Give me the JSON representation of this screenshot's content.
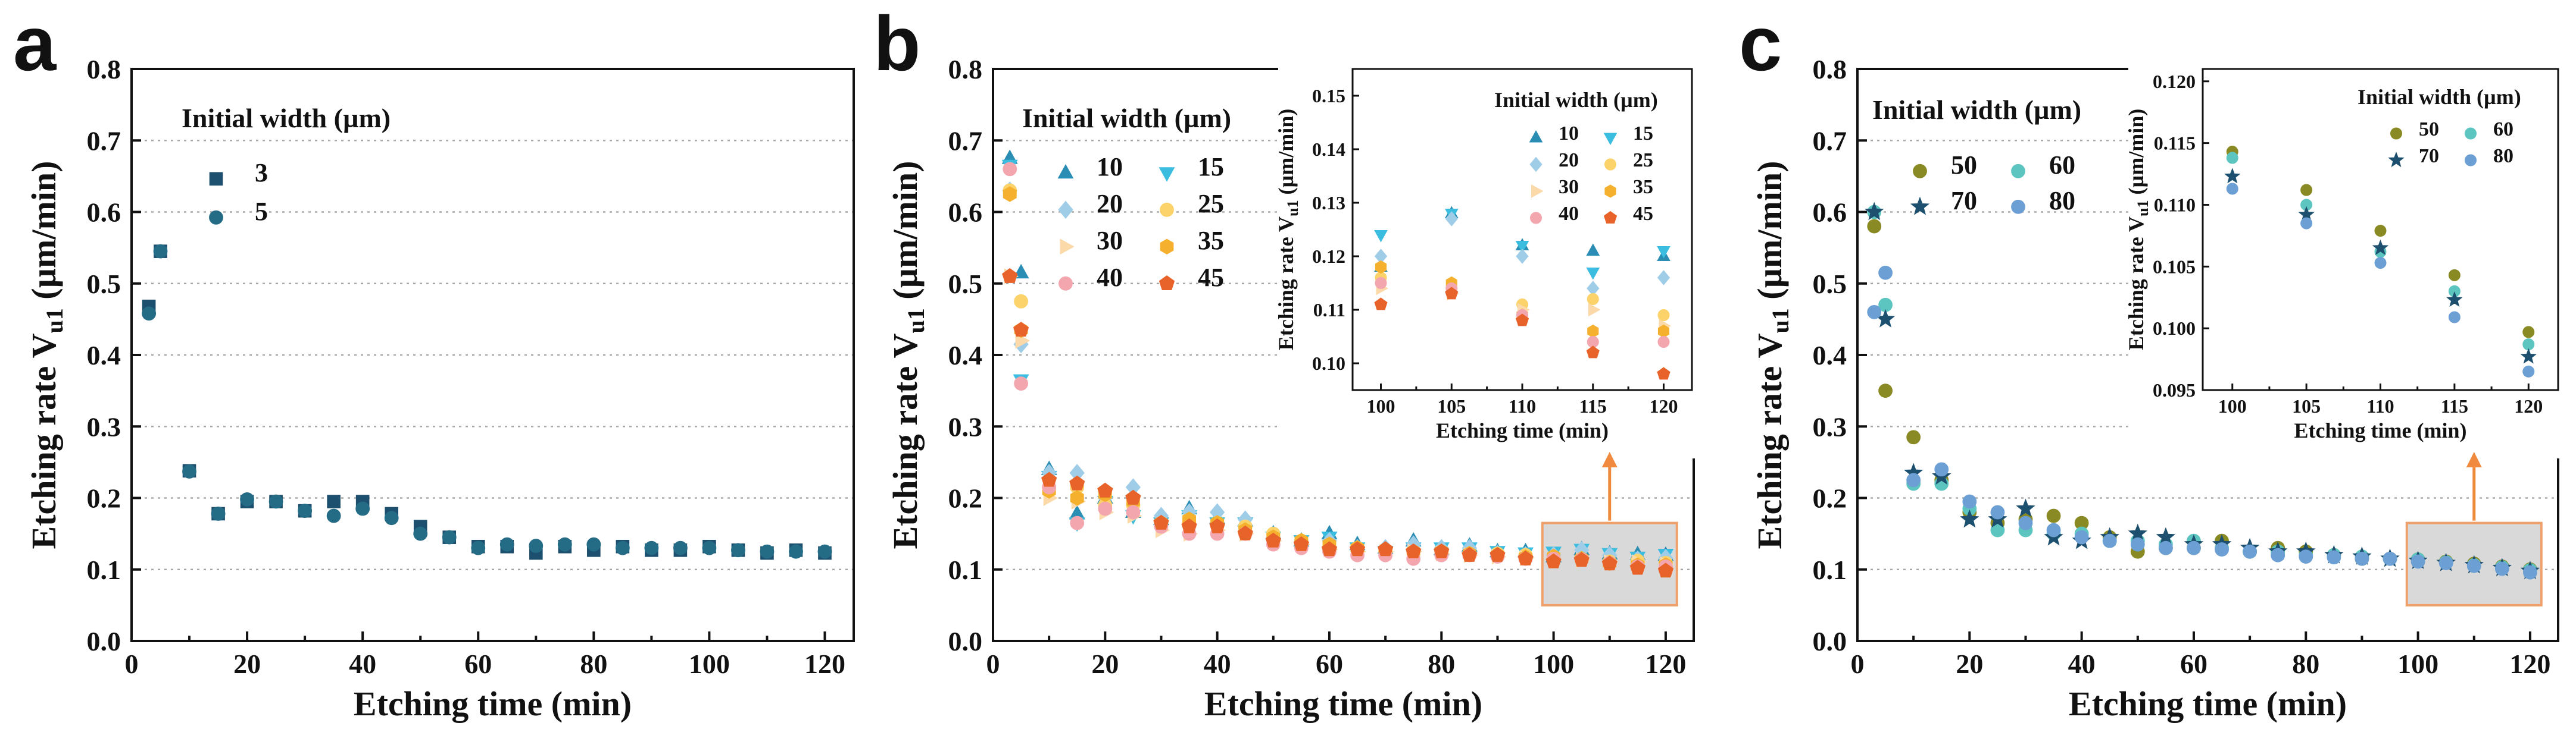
{
  "panels_text": {
    "a": {
      "letter": "a",
      "legend_title": "Initial width (µm)",
      "x_label": "Etching time (min)",
      "y_label": "Etching rate V",
      "y_label_sub": "u1",
      "y_label_unit": " (µm/min)"
    },
    "b": {
      "letter": "b",
      "legend_title": "Initial width (µm)",
      "x_label": "Etching time (min)",
      "y_label": "Etching rate V",
      "y_label_sub": "u1",
      "y_label_unit": " (µm/min)"
    },
    "c": {
      "letter": "c",
      "legend_title": "Initial width (µm)",
      "x_label": "Etching time (min)",
      "y_label": "Etching rate V",
      "y_label_sub": "u1",
      "y_label_unit": " (µm/min)"
    }
  },
  "colors": {
    "w3": "#1d4f6e",
    "w5": "#246b85",
    "w10": "#2a8db3",
    "w15": "#3bbde0",
    "w20": "#9fcde8",
    "w25": "#fcd36a",
    "w30": "#fcd9a8",
    "w35": "#f5b02e",
    "w40": "#f4a6ae",
    "w45": "#e8632a",
    "w50": "#8a8a24",
    "w60": "#5cc5c0",
    "w70": "#1d4f6e",
    "w80": "#6c9fd4",
    "highlight_fill": "#d9d9d9",
    "highlight_edge": "#f0a06a",
    "arrow": "#f08a3e"
  },
  "chart_data": [
    {
      "panel": "a",
      "type": "scatter",
      "title": "",
      "xlabel": "Etching time (min)",
      "ylabel": "Etching rate Vu1 (µm/min)",
      "xlim": [
        0,
        125
      ],
      "ylim": [
        0,
        0.8
      ],
      "xticks": [
        0,
        20,
        40,
        60,
        80,
        100,
        120
      ],
      "yticks": [
        0.0,
        0.1,
        0.2,
        0.3,
        0.4,
        0.5,
        0.6,
        0.7,
        0.8
      ],
      "x": [
        3,
        5,
        10,
        15,
        20,
        25,
        30,
        35,
        40,
        45,
        50,
        55,
        60,
        65,
        70,
        75,
        80,
        85,
        90,
        95,
        100,
        105,
        110,
        115,
        120
      ],
      "series": [
        {
          "name": "3",
          "marker": "square",
          "color_key": "w3",
          "values": [
            0.468,
            0.545,
            0.238,
            0.178,
            0.195,
            0.195,
            0.182,
            0.195,
            0.195,
            0.178,
            0.16,
            0.145,
            0.132,
            0.132,
            0.123,
            0.132,
            0.127,
            0.132,
            0.127,
            0.127,
            0.132,
            0.127,
            0.123,
            0.127,
            0.123
          ]
        },
        {
          "name": "5",
          "marker": "circle",
          "color_key": "w5",
          "values": [
            0.458,
            0.545,
            0.237,
            0.178,
            0.198,
            0.195,
            0.182,
            0.175,
            0.185,
            0.172,
            0.15,
            0.145,
            0.13,
            0.135,
            0.133,
            0.135,
            0.135,
            0.13,
            0.13,
            0.13,
            0.13,
            0.127,
            0.125,
            0.125,
            0.125
          ]
        }
      ]
    },
    {
      "panel": "b",
      "type": "scatter",
      "title": "",
      "xlabel": "Etching time (min)",
      "ylabel": "Etching rate Vu1 (µm/min)",
      "xlim": [
        0,
        125
      ],
      "ylim": [
        0,
        0.8
      ],
      "xticks": [
        0,
        20,
        40,
        60,
        80,
        100,
        120
      ],
      "yticks": [
        0.0,
        0.1,
        0.2,
        0.3,
        0.4,
        0.5,
        0.6,
        0.7,
        0.8
      ],
      "x": [
        3,
        5,
        10,
        15,
        20,
        25,
        30,
        35,
        40,
        45,
        50,
        55,
        60,
        65,
        70,
        75,
        80,
        85,
        90,
        95,
        100,
        105,
        110,
        115,
        120
      ],
      "highlight": {
        "x_range": [
          98,
          122
        ],
        "y_range": [
          0.05,
          0.165
        ]
      },
      "series": [
        {
          "name": "10",
          "marker": "triangle-up",
          "color_key": "w10",
          "values": [
            0.675,
            0.515,
            0.24,
            0.178,
            0.2,
            0.18,
            0.17,
            0.185,
            0.172,
            0.168,
            0.15,
            0.14,
            0.15,
            0.135,
            0.13,
            0.14,
            0.128,
            0.133,
            0.125,
            0.125,
            0.118,
            0.128,
            0.122,
            0.121,
            0.12
          ]
        },
        {
          "name": "15",
          "marker": "triangle-down",
          "color_key": "w15",
          "values": [
            0.665,
            0.365,
            0.23,
            0.165,
            0.195,
            0.175,
            0.165,
            0.175,
            0.165,
            0.165,
            0.145,
            0.14,
            0.145,
            0.13,
            0.125,
            0.13,
            0.13,
            0.13,
            0.125,
            0.123,
            0.124,
            0.128,
            0.122,
            0.117,
            0.121
          ]
        },
        {
          "name": "20",
          "marker": "diamond",
          "color_key": "w20",
          "values": [
            0.63,
            0.415,
            0.235,
            0.235,
            0.2,
            0.215,
            0.175,
            0.18,
            0.18,
            0.17,
            0.145,
            0.135,
            0.14,
            0.13,
            0.13,
            0.135,
            0.13,
            0.13,
            0.122,
            0.12,
            0.12,
            0.127,
            0.12,
            0.114,
            0.116
          ]
        },
        {
          "name": "25",
          "marker": "circle",
          "color_key": "w25",
          "values": [
            0.63,
            0.475,
            0.215,
            0.215,
            0.19,
            0.19,
            0.165,
            0.165,
            0.165,
            0.16,
            0.15,
            0.14,
            0.13,
            0.13,
            0.125,
            0.125,
            0.125,
            0.122,
            0.122,
            0.12,
            0.116,
            0.114,
            0.111,
            0.112,
            0.109
          ]
        },
        {
          "name": "30",
          "marker": "triangle-right",
          "color_key": "w30",
          "values": [
            0.51,
            0.42,
            0.2,
            0.195,
            0.18,
            0.175,
            0.155,
            0.15,
            0.155,
            0.15,
            0.14,
            0.135,
            0.128,
            0.125,
            0.125,
            0.125,
            0.122,
            0.12,
            0.118,
            0.116,
            0.114,
            0.113,
            0.11,
            0.11,
            0.107
          ]
        },
        {
          "name": "35",
          "marker": "hexagon",
          "color_key": "w35",
          "values": [
            0.625,
            0.435,
            0.21,
            0.2,
            0.205,
            0.195,
            0.165,
            0.17,
            0.165,
            0.155,
            0.145,
            0.14,
            0.135,
            0.13,
            0.125,
            0.125,
            0.125,
            0.122,
            0.12,
            0.117,
            0.118,
            0.115,
            0.109,
            0.106,
            0.106
          ]
        },
        {
          "name": "40",
          "marker": "circle",
          "color_key": "w40",
          "values": [
            0.66,
            0.36,
            0.215,
            0.165,
            0.185,
            0.18,
            0.16,
            0.15,
            0.15,
            0.15,
            0.135,
            0.13,
            0.125,
            0.12,
            0.12,
            0.115,
            0.12,
            0.12,
            0.118,
            0.115,
            0.115,
            0.114,
            0.109,
            0.104,
            0.104
          ]
        },
        {
          "name": "45",
          "marker": "pentagon",
          "color_key": "w45",
          "values": [
            0.51,
            0.435,
            0.225,
            0.22,
            0.21,
            0.2,
            0.165,
            0.16,
            0.16,
            0.15,
            0.14,
            0.135,
            0.128,
            0.128,
            0.128,
            0.125,
            0.125,
            0.12,
            0.12,
            0.115,
            0.111,
            0.113,
            0.108,
            0.102,
            0.098
          ]
        }
      ]
    },
    {
      "panel": "b-inset",
      "type": "scatter",
      "title": "",
      "xlabel": "Etching time (min)",
      "ylabel": "Etching rate Vu1 (µm/min)",
      "xlim": [
        98,
        122
      ],
      "ylim": [
        0.095,
        0.155
      ],
      "xticks": [
        100,
        105,
        110,
        115,
        120
      ],
      "yticks": [
        0.1,
        0.11,
        0.12,
        0.13,
        0.14,
        0.15
      ],
      "x": [
        100,
        105,
        110,
        115,
        120
      ],
      "series": [
        {
          "name": "10",
          "marker": "triangle-up",
          "color_key": "w10",
          "values": [
            0.118,
            0.128,
            0.122,
            0.121,
            0.12
          ]
        },
        {
          "name": "15",
          "marker": "triangle-down",
          "color_key": "w15",
          "values": [
            0.124,
            0.128,
            0.122,
            0.117,
            0.121
          ]
        },
        {
          "name": "20",
          "marker": "diamond",
          "color_key": "w20",
          "values": [
            0.12,
            0.127,
            0.12,
            0.114,
            0.116
          ]
        },
        {
          "name": "25",
          "marker": "circle",
          "color_key": "w25",
          "values": [
            0.116,
            0.114,
            0.111,
            0.112,
            0.109
          ]
        },
        {
          "name": "30",
          "marker": "triangle-right",
          "color_key": "w30",
          "values": [
            0.114,
            0.113,
            0.11,
            0.11,
            0.107
          ]
        },
        {
          "name": "35",
          "marker": "hexagon",
          "color_key": "w35",
          "values": [
            0.118,
            0.115,
            0.109,
            0.106,
            0.106
          ]
        },
        {
          "name": "40",
          "marker": "circle",
          "color_key": "w40",
          "values": [
            0.115,
            0.114,
            0.109,
            0.104,
            0.104
          ]
        },
        {
          "name": "45",
          "marker": "pentagon",
          "color_key": "w45",
          "values": [
            0.111,
            0.113,
            0.108,
            0.102,
            0.098
          ]
        }
      ]
    },
    {
      "panel": "c",
      "type": "scatter",
      "title": "",
      "xlabel": "Etching time (min)",
      "ylabel": "Etching rate Vu1 (µm/min)",
      "xlim": [
        0,
        125
      ],
      "ylim": [
        0,
        0.8
      ],
      "xticks": [
        0,
        20,
        40,
        60,
        80,
        100,
        120
      ],
      "yticks": [
        0.0,
        0.1,
        0.2,
        0.3,
        0.4,
        0.5,
        0.6,
        0.7,
        0.8
      ],
      "x": [
        3,
        5,
        10,
        15,
        20,
        25,
        30,
        35,
        40,
        45,
        50,
        55,
        60,
        65,
        70,
        75,
        80,
        85,
        90,
        95,
        100,
        105,
        110,
        115,
        120
      ],
      "highlight": {
        "x_range": [
          98,
          122
        ],
        "y_range": [
          0.05,
          0.165
        ]
      },
      "series": [
        {
          "name": "50",
          "marker": "circle",
          "color_key": "w50",
          "values": [
            0.58,
            0.35,
            0.285,
            0.225,
            0.18,
            0.165,
            0.17,
            0.175,
            0.165,
            0.145,
            0.125,
            0.13,
            0.13,
            0.14,
            0.125,
            0.13,
            0.125,
            0.12,
            0.115,
            0.115,
            0.114,
            0.111,
            0.108,
            0.104,
            0.1
          ]
        },
        {
          "name": "60",
          "marker": "circle",
          "color_key": "w60",
          "values": [
            0.6,
            0.47,
            0.22,
            0.22,
            0.185,
            0.155,
            0.155,
            0.15,
            0.15,
            0.14,
            0.14,
            0.135,
            0.14,
            0.13,
            0.125,
            0.125,
            0.12,
            0.12,
            0.118,
            0.115,
            0.114,
            0.11,
            0.106,
            0.103,
            0.099
          ]
        },
        {
          "name": "70",
          "marker": "star",
          "color_key": "w70",
          "values": [
            0.6,
            0.45,
            0.235,
            0.23,
            0.17,
            0.17,
            0.185,
            0.145,
            0.14,
            0.145,
            0.15,
            0.145,
            0.135,
            0.135,
            0.13,
            0.125,
            0.125,
            0.12,
            0.118,
            0.115,
            0.112,
            0.109,
            0.106,
            0.102,
            0.098
          ]
        },
        {
          "name": "80",
          "marker": "circle",
          "color_key": "w80",
          "values": [
            0.46,
            0.515,
            0.225,
            0.24,
            0.195,
            0.18,
            0.165,
            0.155,
            0.145,
            0.14,
            0.135,
            0.13,
            0.13,
            0.128,
            0.125,
            0.12,
            0.118,
            0.117,
            0.115,
            0.115,
            0.111,
            0.109,
            0.105,
            0.101,
            0.096
          ]
        }
      ]
    },
    {
      "panel": "c-inset",
      "type": "scatter",
      "title": "",
      "xlabel": "Etching time (min)",
      "ylabel": "Etching rate Vu1 (µm/min)",
      "xlim": [
        98,
        122
      ],
      "ylim": [
        0.095,
        0.121
      ],
      "xticks": [
        100,
        105,
        110,
        115,
        120
      ],
      "yticks": [
        0.095,
        0.1,
        0.105,
        0.11,
        0.115,
        0.12
      ],
      "x": [
        100,
        105,
        110,
        115,
        120
      ],
      "series": [
        {
          "name": "50",
          "marker": "circle",
          "color_key": "w50",
          "values": [
            0.1143,
            0.1112,
            0.1079,
            0.1043,
            0.0997
          ]
        },
        {
          "name": "60",
          "marker": "circle",
          "color_key": "w60",
          "values": [
            0.1138,
            0.11,
            0.1062,
            0.103,
            0.0987
          ]
        },
        {
          "name": "70",
          "marker": "star",
          "color_key": "w70",
          "values": [
            0.1123,
            0.1092,
            0.1065,
            0.1023,
            0.0977
          ]
        },
        {
          "name": "80",
          "marker": "circle",
          "color_key": "w80",
          "values": [
            0.1113,
            0.1085,
            0.1053,
            0.1009,
            0.0965
          ]
        }
      ]
    }
  ]
}
